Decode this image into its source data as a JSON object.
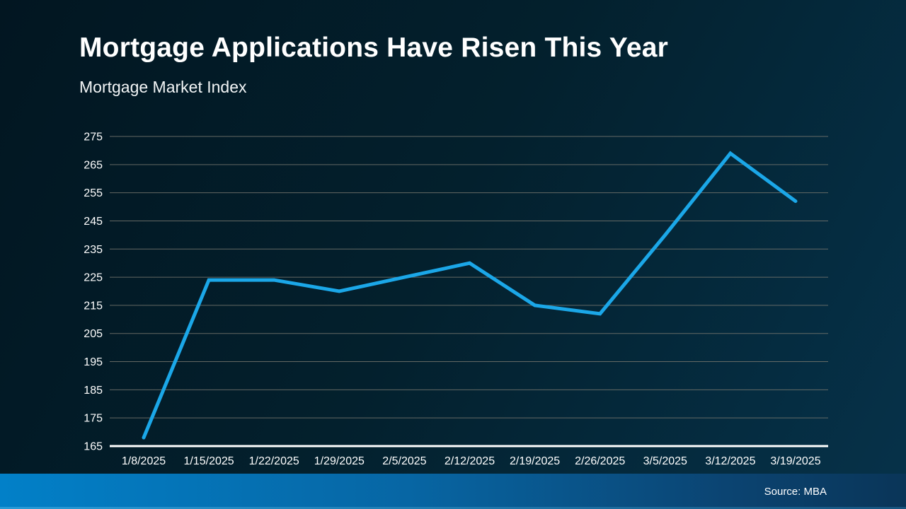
{
  "slide": {
    "title": "Mortgage Applications Have Risen This Year",
    "subtitle": "Mortgage Market Index",
    "source": "Source: MBA"
  },
  "colors": {
    "background_top_left": "#021621",
    "background_bottom_right": "#06324a",
    "line": "#1ba7e8",
    "gridline": "#76766e",
    "axis_line": "#ffffff",
    "text": "#ffffff",
    "footer_gradient_left": "#0280c8",
    "footer_gradient_right": "#0a3558"
  },
  "chart_data": {
    "type": "line",
    "title": "Mortgage Applications Have Risen This Year",
    "subtitle": "Mortgage Market Index",
    "xlabel": "",
    "ylabel": "",
    "categories": [
      "1/8/2025",
      "1/15/2025",
      "1/22/2025",
      "1/29/2025",
      "2/5/2025",
      "2/12/2025",
      "2/19/2025",
      "2/26/2025",
      "3/5/2025",
      "3/12/2025",
      "3/19/2025"
    ],
    "series": [
      {
        "name": "Mortgage Market Index",
        "values": [
          168,
          224,
          224,
          220,
          225,
          230,
          215,
          212,
          240,
          269,
          252
        ]
      }
    ],
    "ylim": [
      165,
      275
    ],
    "y_ticks": [
      165,
      175,
      185,
      195,
      205,
      215,
      225,
      235,
      245,
      255,
      265,
      275
    ],
    "grid": "horizontal",
    "legend": "none"
  }
}
